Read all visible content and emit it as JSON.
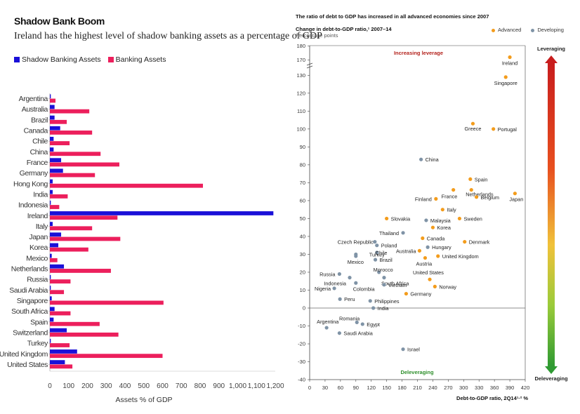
{
  "left_chart": {
    "title": "Shadow Bank Boom",
    "subtitle": "Ireland has the highest level of shadow banking assets as a percentage of GDP",
    "legend": [
      {
        "label": "Shadow Banking Assets",
        "color": "#1a10d8"
      },
      {
        "label": "Banking Assets",
        "color": "#ec1f5c"
      }
    ]
  },
  "right_chart": {
    "title": "The ratio of debt to GDP has increased in all advanced economies since 2007",
    "subtitle": "Change in debt-to-GDP ratio,¹ 2007–14",
    "units": "Percentage points",
    "legend": [
      {
        "label": "Advanced",
        "color": "#f39c1c"
      },
      {
        "label": "Developing",
        "color": "#7f93a6"
      }
    ],
    "scale": {
      "top_label": "Leveraging",
      "bottom_label": "Deleveraging"
    }
  },
  "chart_data": [
    {
      "type": "bar",
      "orientation": "horizontal",
      "title": "Shadow Bank Boom",
      "subtitle": "Ireland has the highest level of shadow banking assets as a percentage of GDP",
      "xlabel": "Assets % of GDP",
      "ylabel": "",
      "xlim": [
        0,
        1200
      ],
      "xticks": [
        0,
        100,
        200,
        300,
        400,
        500,
        600,
        700,
        800,
        900,
        1000,
        1100,
        1200
      ],
      "xtick_labels": [
        "0",
        "100",
        "200",
        "300",
        "400",
        "500",
        "600",
        "700",
        "800",
        "900",
        "1,000",
        "1,100",
        "1,200"
      ],
      "categories": [
        "Argentina",
        "Australia",
        "Brazil",
        "Canada",
        "Chile",
        "China",
        "France",
        "Germany",
        "Hong Kong",
        "India",
        "Indonesia",
        "Ireland",
        "Italy",
        "Japan",
        "Korea",
        "Mexico",
        "Netherlands",
        "Russia",
        "Saudi Arabia",
        "Singapore",
        "South Africa",
        "Spain",
        "Switzerland",
        "Turkey",
        "United Kingdom",
        "United States"
      ],
      "series": [
        {
          "name": "Shadow Banking Assets",
          "color": "#1a10d8",
          "values": [
            5,
            25,
            25,
            55,
            20,
            20,
            60,
            70,
            15,
            15,
            5,
            1190,
            15,
            60,
            45,
            10,
            75,
            5,
            5,
            10,
            25,
            20,
            90,
            5,
            145,
            80
          ]
        },
        {
          "name": "Banking Assets",
          "color": "#ec1f5c",
          "values": [
            30,
            210,
            90,
            225,
            105,
            270,
            370,
            240,
            815,
            95,
            50,
            360,
            225,
            375,
            205,
            40,
            325,
            110,
            75,
            605,
            110,
            265,
            365,
            105,
            600,
            120
          ]
        }
      ]
    },
    {
      "type": "scatter",
      "title": "The ratio of debt to GDP has increased in all advanced economies since 2007",
      "subtitle": "Change in debt-to-GDP ratio,¹ 2007–14",
      "ylabel": "Percentage points",
      "xlabel": "Debt-to-GDP ratio, 2Q14¹·² %",
      "xlim": [
        0,
        420
      ],
      "xticks": [
        0,
        30,
        60,
        90,
        120,
        150,
        180,
        210,
        240,
        270,
        300,
        330,
        360,
        390,
        420
      ],
      "ylim": [
        -40,
        180
      ],
      "yticks": [
        -40,
        -30,
        -20,
        -10,
        0,
        10,
        20,
        30,
        40,
        50,
        60,
        70,
        80,
        90,
        100,
        110,
        120,
        130,
        170,
        180
      ],
      "axis_break": {
        "from": 135,
        "to": 165
      },
      "annotations": [
        "Increasing leverage",
        "Deleveraging"
      ],
      "series": [
        {
          "name": "Advanced",
          "color": "#f39c1c",
          "points": [
            {
              "label": "Ireland",
              "x": 390,
              "y": 172
            },
            {
              "label": "Singapore",
              "x": 382,
              "y": 129
            },
            {
              "label": "Greece",
              "x": 318,
              "y": 103
            },
            {
              "label": "Portugal",
              "x": 358,
              "y": 100
            },
            {
              "label": "Spain",
              "x": 313,
              "y": 72
            },
            {
              "label": "Netherlands",
              "x": 315,
              "y": 66
            },
            {
              "label": "Japan",
              "x": 400,
              "y": 64
            },
            {
              "label": "France",
              "x": 280,
              "y": 66
            },
            {
              "label": "Belgium",
              "x": 325,
              "y": 62
            },
            {
              "label": "Finland",
              "x": 246,
              "y": 61
            },
            {
              "label": "Italy",
              "x": 259,
              "y": 55
            },
            {
              "label": "Slovakia",
              "x": 150,
              "y": 50
            },
            {
              "label": "Sweden",
              "x": 292,
              "y": 50
            },
            {
              "label": "Korea",
              "x": 240,
              "y": 45
            },
            {
              "label": "Canada",
              "x": 220,
              "y": 39
            },
            {
              "label": "Denmark",
              "x": 302,
              "y": 37
            },
            {
              "label": "Australia",
              "x": 214,
              "y": 32
            },
            {
              "label": "United Kingdom",
              "x": 250,
              "y": 29
            },
            {
              "label": "Austria",
              "x": 225,
              "y": 28
            },
            {
              "label": "United States",
              "x": 234,
              "y": 16
            },
            {
              "label": "Norway",
              "x": 244,
              "y": 12
            },
            {
              "label": "Germany",
              "x": 188,
              "y": 8
            }
          ]
        },
        {
          "name": "Developing",
          "color": "#7f93a6",
          "points": [
            {
              "label": "China",
              "x": 217,
              "y": 83
            },
            {
              "label": "Malaysia",
              "x": 227,
              "y": 49
            },
            {
              "label": "Thailand",
              "x": 182,
              "y": 42
            },
            {
              "label": "Czech Republic",
              "x": 127,
              "y": 37
            },
            {
              "label": "Poland",
              "x": 131,
              "y": 35
            },
            {
              "label": "Hungary",
              "x": 230,
              "y": 34
            },
            {
              "label": "Turkey",
              "x": 90,
              "y": 30
            },
            {
              "label": "Chile",
              "x": 131,
              "y": 31
            },
            {
              "label": "Mexico",
              "x": 90,
              "y": 29
            },
            {
              "label": "Brazil",
              "x": 128,
              "y": 27
            },
            {
              "label": "Morocco",
              "x": 135,
              "y": 20
            },
            {
              "label": "Russia",
              "x": 58,
              "y": 19
            },
            {
              "label": "South Africa",
              "x": 145,
              "y": 17
            },
            {
              "label": "Indonesia",
              "x": 78,
              "y": 17
            },
            {
              "label": "Colombia",
              "x": 90,
              "y": 14
            },
            {
              "label": "Vietnam",
              "x": 145,
              "y": 13
            },
            {
              "label": "Nigeria",
              "x": 48,
              "y": 11
            },
            {
              "label": "Peru",
              "x": 59,
              "y": 5
            },
            {
              "label": "Philippines",
              "x": 118,
              "y": 4
            },
            {
              "label": "India",
              "x": 124,
              "y": 0
            },
            {
              "label": "Romania",
              "x": 92,
              "y": -8
            },
            {
              "label": "Egypt",
              "x": 103,
              "y": -9
            },
            {
              "label": "Argentina",
              "x": 33,
              "y": -11
            },
            {
              "label": "Saudi Arabia",
              "x": 58,
              "y": -14
            },
            {
              "label": "Israel",
              "x": 182,
              "y": -23
            }
          ]
        }
      ]
    }
  ]
}
